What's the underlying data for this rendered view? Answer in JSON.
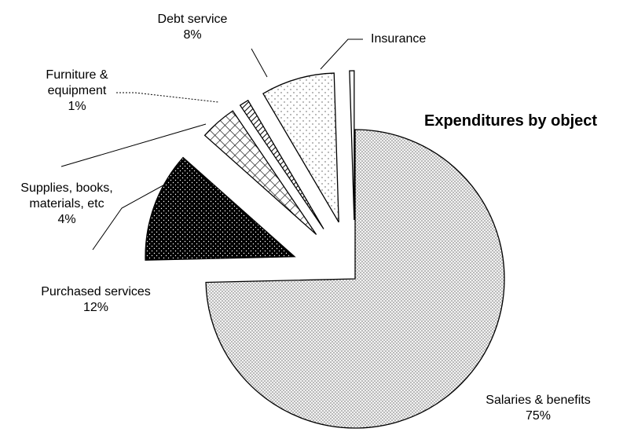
{
  "chart_data": {
    "type": "pie",
    "title": "Expenditures by object",
    "categories": [
      "Salaries & benefits",
      "Purchased services",
      "Supplies, books, materials, etc",
      "Furniture & equipment",
      "Debt service",
      "Insurance"
    ],
    "values": [
      75,
      12,
      4,
      1,
      8,
      0.5
    ],
    "value_labels": [
      "75%",
      "12%",
      "4%",
      "1%",
      "8%",
      null
    ],
    "colors": [
      "#d6d6d6",
      "#000000",
      "#ffffff",
      "#ffffff",
      "#ffffff",
      "#ffffff"
    ]
  }
}
